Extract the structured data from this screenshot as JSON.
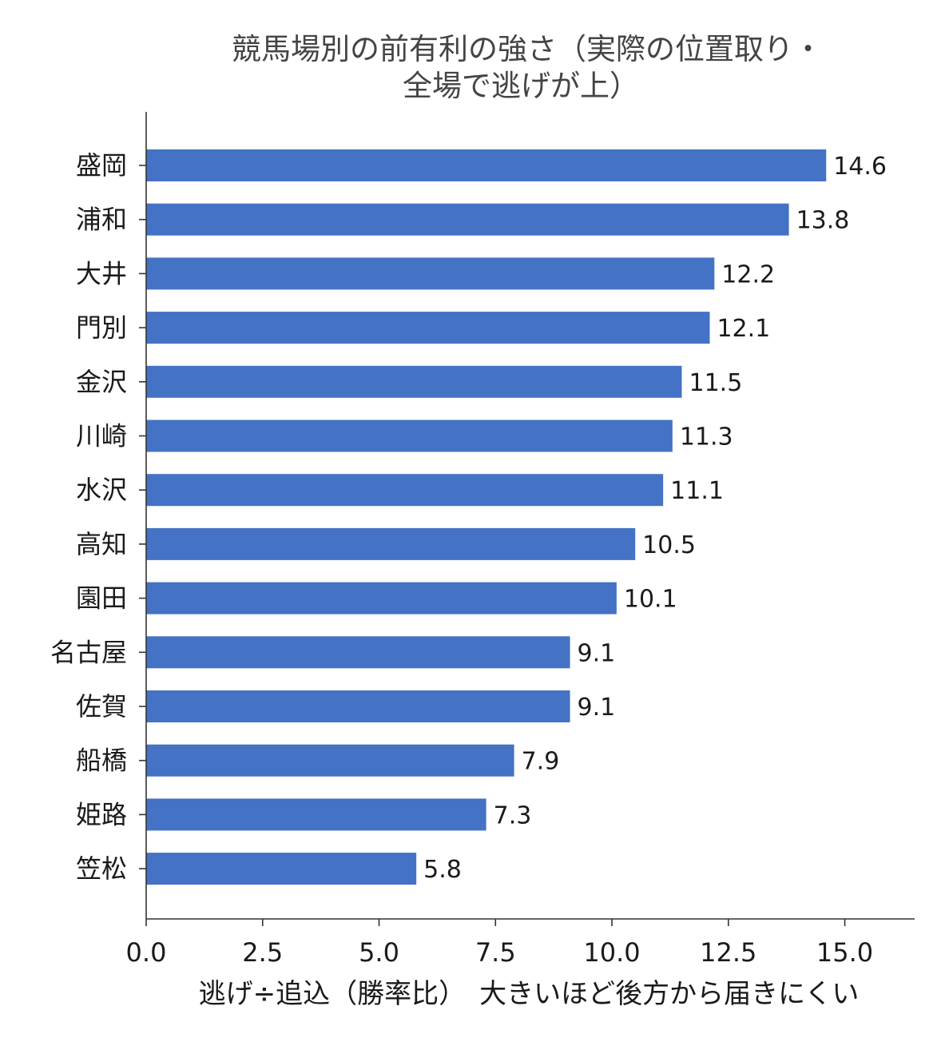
{
  "chart_data": {
    "type": "bar",
    "orientation": "horizontal",
    "title_lines": [
      "競馬場別の前有利の強さ（実際の位置取り・",
      "全場で逃げが上）"
    ],
    "xlabel": "逃げ÷追込（勝率比）　大きいほど後方から届きにくい",
    "ylabel": "",
    "categories": [
      "盛岡",
      "浦和",
      "大井",
      "門別",
      "金沢",
      "川崎",
      "水沢",
      "高知",
      "園田",
      "名古屋",
      "佐賀",
      "船橋",
      "姫路",
      "笠松"
    ],
    "values": [
      14.6,
      13.8,
      12.2,
      12.1,
      11.5,
      11.3,
      11.1,
      10.5,
      10.1,
      9.1,
      9.1,
      7.9,
      7.3,
      5.8
    ],
    "data_labels": [
      "14.6",
      "13.8",
      "12.2",
      "12.1",
      "11.5",
      "11.3",
      "11.1",
      "10.5",
      "10.1",
      "9.1",
      "9.1",
      "7.9",
      "7.3",
      "5.8"
    ],
    "xlim": [
      0,
      16.5
    ],
    "xticks": [
      0,
      2.5,
      5,
      7.5,
      10,
      12.5,
      15
    ],
    "xtick_labels": [
      "0.0",
      "2.5",
      "5.0",
      "7.5",
      "10.0",
      "12.5",
      "15.0"
    ],
    "bar_color": "#4472c4",
    "grid": false,
    "legend": "none"
  }
}
